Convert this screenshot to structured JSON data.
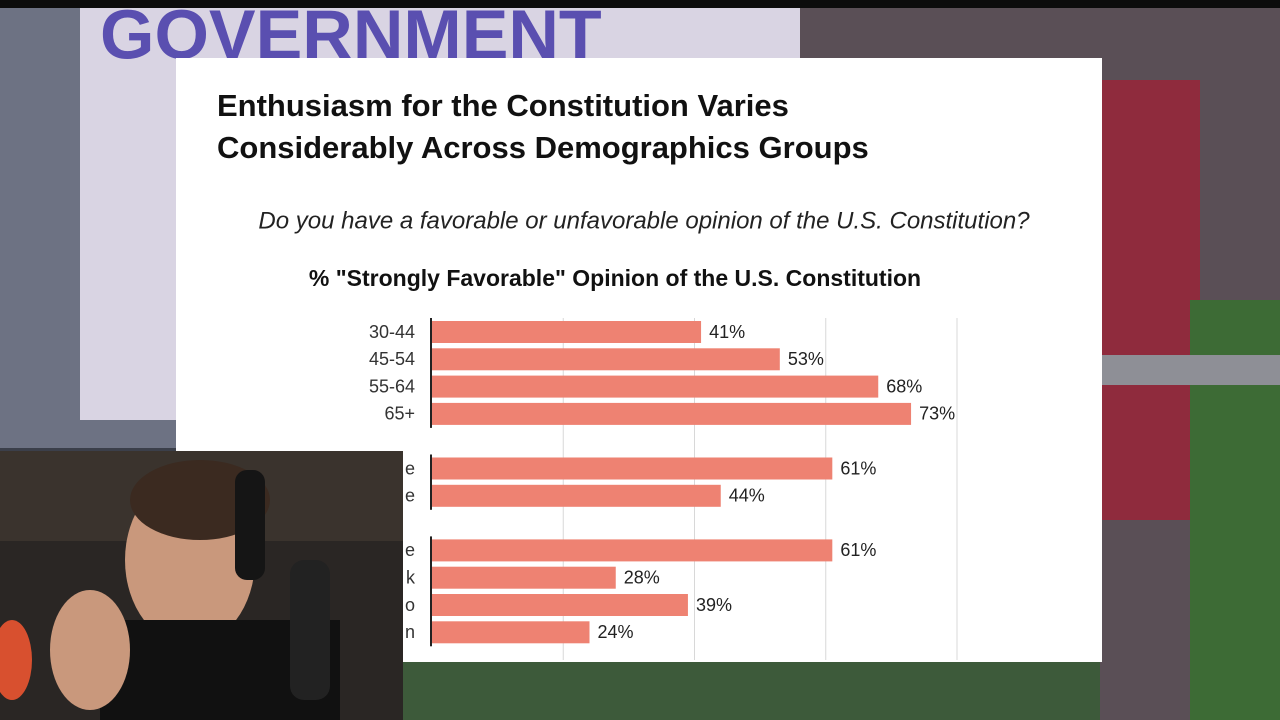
{
  "chart_data": {
    "type": "bar",
    "orientation": "horizontal",
    "title": [
      "Enthusiasm for the Constitution Varies",
      "Considerably Across Demographics Groups"
    ],
    "subtitle": "Do you have a favorable or unfavorable opinion of the U.S. Constitution?",
    "chart_title": "% \"Strongly Favorable\" Opinion of the U.S. Constitution",
    "color": "#ee8272",
    "xlim": [
      0,
      80
    ],
    "gridlines": [
      20,
      40,
      60,
      80
    ],
    "groups": [
      {
        "categories": [
          "30-44",
          "45-54",
          "55-64",
          "65+"
        ],
        "values": [
          41,
          53,
          68,
          73
        ],
        "value_labels": [
          "41%",
          "53%",
          "68%",
          "73%"
        ]
      },
      {
        "categories": [
          "e",
          "e"
        ],
        "values": [
          61,
          44
        ],
        "value_labels": [
          "61%",
          "44%"
        ]
      },
      {
        "categories": [
          "e",
          "k",
          "o",
          "n"
        ],
        "values": [
          61,
          28,
          39,
          24
        ],
        "value_labels": [
          "61%",
          "28%",
          "39%",
          "24%"
        ]
      }
    ]
  }
}
